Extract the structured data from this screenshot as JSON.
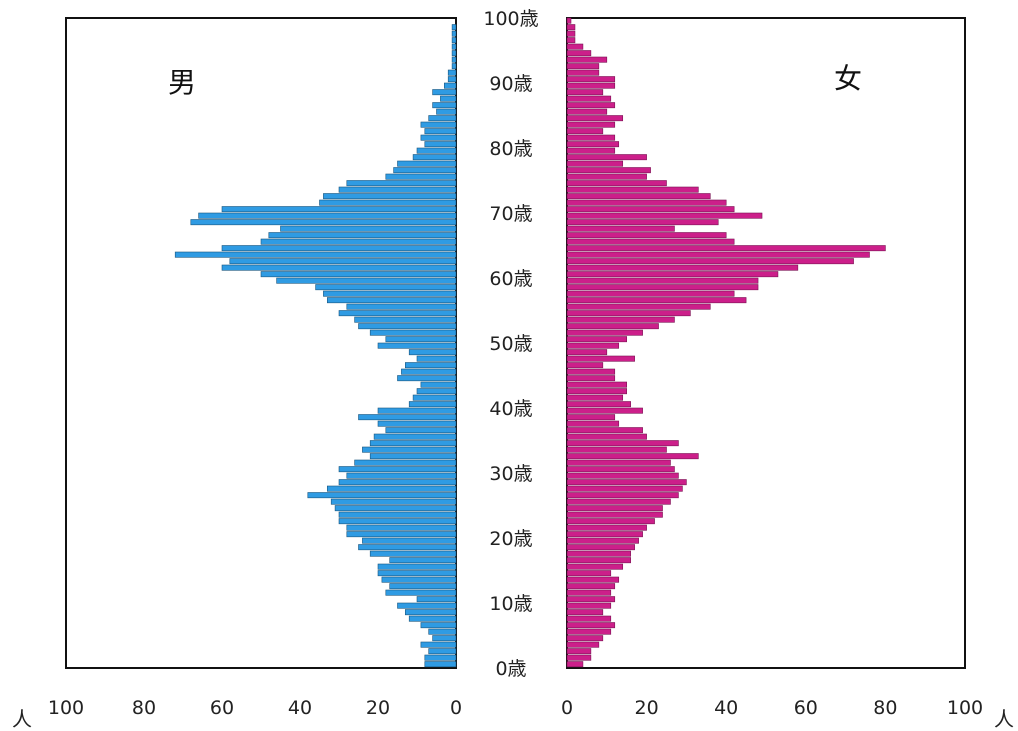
{
  "chart_data": {
    "type": "bar",
    "orientation": "horizontal",
    "layout": "population-pyramid",
    "age_labels": [
      "0歳",
      "10歳",
      "20歳",
      "30歳",
      "40歳",
      "50歳",
      "60歳",
      "70歳",
      "80歳",
      "90歳",
      "100歳"
    ],
    "male_axis_ticks": [
      "100",
      "80",
      "60",
      "40",
      "20",
      "0"
    ],
    "female_axis_ticks": [
      "0",
      "20",
      "40",
      "60",
      "80",
      "100"
    ],
    "unit_label": "人",
    "xlim": [
      0,
      100
    ],
    "ylim": [
      0,
      100
    ],
    "series": [
      {
        "name": "男",
        "color": "#2f9be3",
        "values": [
          8,
          8,
          7,
          9,
          6,
          7,
          9,
          12,
          13,
          15,
          10,
          18,
          17,
          19,
          20,
          20,
          17,
          22,
          25,
          24,
          28,
          28,
          30,
          30,
          31,
          32,
          38,
          33,
          30,
          28,
          30,
          26,
          22,
          24,
          22,
          21,
          18,
          20,
          25,
          20,
          12,
          11,
          10,
          9,
          15,
          14,
          13,
          10,
          12,
          20,
          18,
          22,
          25,
          26,
          30,
          28,
          33,
          34,
          36,
          46,
          50,
          60,
          58,
          72,
          60,
          50,
          48,
          45,
          68,
          66,
          60,
          35,
          34,
          30,
          28,
          18,
          16,
          15,
          11,
          10,
          8,
          9,
          8,
          9,
          7,
          5,
          6,
          4,
          6,
          3,
          2,
          2,
          1,
          1,
          1,
          1,
          1,
          1,
          1,
          0
        ]
      },
      {
        "name": "女",
        "color": "#cc1f8a",
        "values": [
          4,
          6,
          6,
          8,
          9,
          11,
          12,
          11,
          9,
          11,
          12,
          11,
          12,
          13,
          11,
          14,
          16,
          16,
          17,
          18,
          19,
          20,
          22,
          24,
          24,
          26,
          28,
          29,
          30,
          28,
          27,
          26,
          33,
          25,
          28,
          20,
          19,
          13,
          12,
          19,
          16,
          14,
          15,
          15,
          12,
          12,
          9,
          17,
          10,
          13,
          15,
          19,
          23,
          27,
          31,
          36,
          45,
          42,
          48,
          48,
          53,
          58,
          72,
          76,
          80,
          42,
          40,
          27,
          38,
          49,
          42,
          40,
          36,
          33,
          25,
          20,
          21,
          14,
          20,
          12,
          13,
          12,
          9,
          12,
          14,
          10,
          12,
          11,
          9,
          12,
          12,
          8,
          8,
          10,
          6,
          4,
          2,
          2,
          2,
          1
        ]
      }
    ]
  }
}
